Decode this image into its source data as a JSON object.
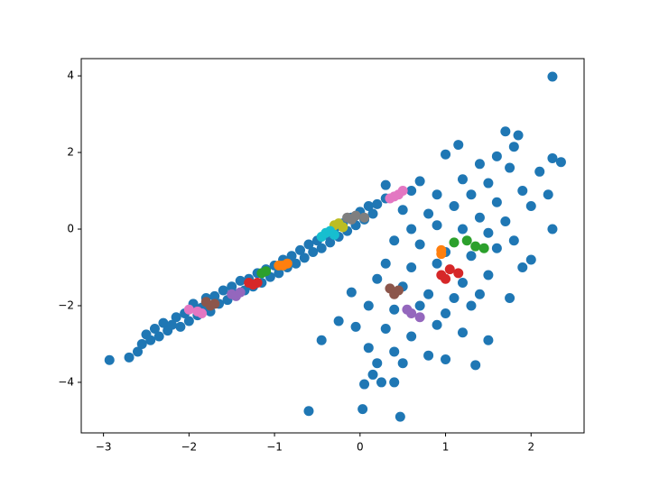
{
  "chart_data": {
    "type": "scatter",
    "xlim": [
      -3.26,
      2.62
    ],
    "ylim": [
      -5.32,
      4.45
    ],
    "xticks": [
      {
        "value": -3,
        "label": "−3"
      },
      {
        "value": -2,
        "label": "−2"
      },
      {
        "value": -1,
        "label": "−1"
      },
      0,
      1,
      2
    ],
    "yticks": [
      {
        "value": -4,
        "label": "−4"
      },
      {
        "value": -2,
        "label": "−2"
      },
      0,
      2,
      4
    ],
    "grid": false,
    "series": [
      {
        "color": "#1f77b4",
        "x": [
          -2.93,
          -2.7,
          -2.6,
          -2.55,
          -2.5,
          -2.45,
          -2.4,
          -2.35,
          -2.3,
          -2.25,
          -2.2,
          -2.15,
          -2.1,
          -2.05,
          -2.0,
          -1.95,
          -1.9,
          -1.85,
          -1.8,
          -1.75,
          -1.7,
          -1.65,
          -1.6,
          -1.55,
          -1.5,
          -1.45,
          -1.4,
          -1.35,
          -1.3,
          -1.25,
          -1.2,
          -1.15,
          -1.1,
          -1.05,
          -1.0,
          -0.95,
          -0.9,
          -0.85,
          -0.8,
          -0.75,
          -0.7,
          -0.65,
          -0.6,
          -0.55,
          -0.5,
          -0.45,
          -0.4,
          -0.35,
          -0.3,
          -0.25,
          -0.2,
          -0.15,
          -0.1,
          -0.05,
          0.0,
          0.05,
          0.1,
          0.15,
          0.2,
          0.3,
          0.3,
          -0.6,
          0.03,
          2.25,
          1.7,
          1.85,
          1.15,
          1.0,
          1.8,
          1.6,
          2.25,
          2.35,
          1.4,
          1.75,
          2.1,
          0.7,
          0.6,
          1.2,
          1.5,
          1.9,
          2.2,
          0.9,
          1.3,
          1.6,
          2.0,
          0.5,
          0.8,
          1.1,
          1.4,
          1.7,
          2.25,
          0.6,
          0.9,
          1.2,
          1.5,
          1.8,
          0.4,
          0.7,
          1.0,
          1.3,
          1.6,
          2.0,
          0.3,
          0.6,
          0.9,
          1.2,
          1.5,
          1.9,
          -0.1,
          0.2,
          0.5,
          0.8,
          1.1,
          1.4,
          1.75,
          0.1,
          0.4,
          0.7,
          1.0,
          1.3,
          -0.25,
          -0.05,
          0.3,
          0.6,
          0.9,
          1.2,
          1.5,
          -0.45,
          0.1,
          0.4,
          0.8,
          1.0,
          1.35,
          0.15,
          0.25,
          0.05,
          0.4,
          0.5,
          0.2,
          0.47
        ],
        "values": [
          -3.42,
          -3.35,
          -3.2,
          -3.0,
          -2.75,
          -2.9,
          -2.6,
          -2.8,
          -2.45,
          -2.65,
          -2.5,
          -2.3,
          -2.55,
          -2.2,
          -2.4,
          -1.95,
          -2.25,
          -2.05,
          -1.8,
          -2.15,
          -1.75,
          -1.95,
          -1.6,
          -1.85,
          -1.5,
          -1.7,
          -1.35,
          -1.6,
          -1.3,
          -1.5,
          -1.15,
          -1.4,
          -1.05,
          -1.25,
          -0.95,
          -1.15,
          -0.8,
          -1.0,
          -0.7,
          -0.9,
          -0.55,
          -0.75,
          -0.4,
          -0.6,
          -0.3,
          -0.5,
          -0.15,
          -0.35,
          0.0,
          -0.2,
          0.15,
          -0.05,
          0.3,
          0.1,
          0.45,
          0.25,
          0.6,
          0.4,
          0.65,
          0.8,
          1.15,
          -4.75,
          -4.7,
          3.98,
          2.55,
          2.45,
          2.2,
          1.95,
          2.15,
          1.9,
          1.85,
          1.75,
          1.7,
          1.6,
          1.5,
          1.25,
          1.0,
          1.3,
          1.2,
          1.0,
          0.9,
          0.9,
          0.9,
          0.7,
          0.6,
          0.5,
          0.4,
          0.6,
          0.3,
          0.2,
          0.0,
          0.0,
          0.1,
          0.0,
          -0.1,
          -0.3,
          -0.3,
          -0.4,
          -0.6,
          -0.7,
          -0.5,
          -0.8,
          -0.9,
          -1.0,
          -0.9,
          -1.4,
          -1.2,
          -1.0,
          -1.65,
          -1.3,
          -1.5,
          -1.7,
          -1.8,
          -1.7,
          -1.8,
          -2.0,
          -2.1,
          -2.0,
          -2.2,
          -2.0,
          -2.4,
          -2.55,
          -2.6,
          -2.8,
          -2.5,
          -2.7,
          -2.9,
          -2.9,
          -3.1,
          -3.2,
          -3.3,
          -3.4,
          -3.55,
          -3.8,
          -4.0,
          -4.05,
          -4.0,
          -3.5,
          -3.5,
          -4.9
        ]
      },
      {
        "color": "#ff7f0e",
        "x": [
          -0.95,
          -0.9,
          -0.85,
          0.95,
          0.95
        ],
        "values": [
          -0.95,
          -0.95,
          -0.9,
          -0.55,
          -0.65
        ]
      },
      {
        "color": "#2ca02c",
        "x": [
          -1.15,
          -1.1,
          1.1,
          1.25,
          1.35,
          1.45
        ],
        "values": [
          -1.15,
          -1.1,
          -0.35,
          -0.3,
          -0.45,
          -0.5
        ]
      },
      {
        "color": "#d62728",
        "x": [
          -1.3,
          -1.25,
          -1.2,
          0.95,
          1.05,
          1.15,
          1.0
        ],
        "values": [
          -1.4,
          -1.45,
          -1.4,
          -1.2,
          -1.05,
          -1.15,
          -1.3
        ]
      },
      {
        "color": "#9467bd",
        "x": [
          -1.5,
          -1.45,
          -1.4,
          0.55,
          0.6,
          0.7
        ],
        "values": [
          -1.7,
          -1.75,
          -1.65,
          -2.1,
          -2.2,
          -2.3
        ]
      },
      {
        "color": "#8c564b",
        "x": [
          -1.8,
          -1.7,
          -1.75,
          0.35,
          0.4,
          0.45
        ],
        "values": [
          -1.9,
          -1.95,
          -2.0,
          -1.55,
          -1.7,
          -1.6
        ]
      },
      {
        "color": "#e377c2",
        "x": [
          -2.0,
          -1.9,
          -1.85,
          0.35,
          0.45,
          0.5,
          0.4
        ],
        "values": [
          -2.1,
          -2.15,
          -2.2,
          0.8,
          0.9,
          1.0,
          0.85
        ]
      },
      {
        "color": "#7f7f7f",
        "x": [
          -0.15,
          -0.05,
          0.05,
          -0.1
        ],
        "values": [
          0.3,
          0.35,
          0.3,
          0.25
        ]
      },
      {
        "color": "#bcbd22",
        "x": [
          -0.3,
          -0.25,
          -0.2
        ],
        "values": [
          0.1,
          0.15,
          0.05
        ]
      },
      {
        "color": "#17becf",
        "x": [
          -0.45,
          -0.4,
          -0.3,
          -0.35
        ],
        "values": [
          -0.2,
          -0.1,
          -0.15,
          -0.05
        ]
      }
    ]
  }
}
